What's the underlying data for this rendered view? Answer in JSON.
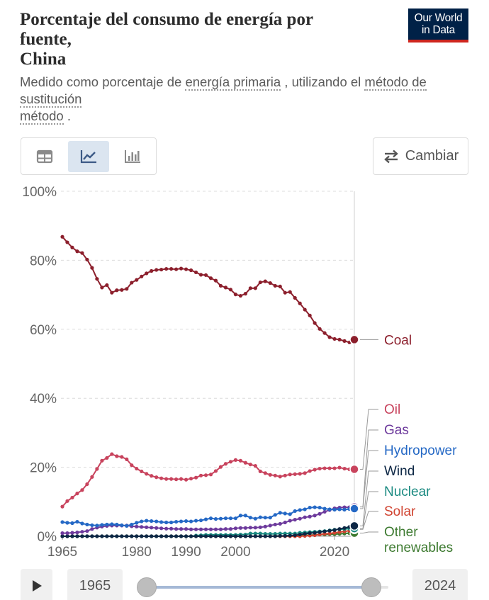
{
  "header": {
    "title_line1": "Porcentaje del consumo de energía por",
    "title_line2": "fuente,",
    "title_line3": "China",
    "logo_line1": "Our World",
    "logo_line2": "in Data",
    "subtitle_part1": "Medido como porcentaje de ",
    "subtitle_link1": "energía primaria",
    "subtitle_part2": " , utilizando el ",
    "subtitle_link2a": "método de sustitución",
    "subtitle_link2b": "método",
    "subtitle_part3": " ."
  },
  "toolbar": {
    "tabs": [
      {
        "name": "table",
        "icon": "table-icon",
        "active": false
      },
      {
        "name": "chart",
        "icon": "line-chart-icon",
        "active": true
      },
      {
        "name": "bar",
        "icon": "bar-chart-icon",
        "active": false
      }
    ],
    "switch_label": "Cambiar"
  },
  "timeline": {
    "start_year": "1965",
    "end_year": "2024"
  },
  "colors": {
    "Coal": "#8c1f2c",
    "Oil": "#c8435d",
    "Gas": "#6d3a9c",
    "Hydropower": "#2468c5",
    "Wind": "#0d2745",
    "Nuclear": "#1b8a81",
    "Solar": "#d0422f",
    "Other renewables": "#3d7a30",
    "grid": "#dcdcdc",
    "axis_text": "#666666"
  },
  "chart_data": {
    "type": "line",
    "x_start": 1965,
    "x_end": 2024,
    "ylim": [
      0,
      100
    ],
    "yticks": [
      "0%",
      "20%",
      "40%",
      "60%",
      "80%",
      "100%"
    ],
    "ytick_values": [
      0,
      20,
      40,
      60,
      80,
      100
    ],
    "xticks": [
      1965,
      1980,
      1990,
      2000,
      2020
    ],
    "grid": true,
    "legend": "right-end-labels",
    "series": [
      {
        "name": "Coal",
        "values": [
          86.8,
          85.2,
          83.7,
          82.6,
          82.1,
          80.2,
          77.8,
          74.6,
          72.1,
          72.8,
          70.6,
          71.3,
          71.4,
          71.7,
          73.5,
          74.3,
          75.3,
          76.2,
          76.9,
          77.2,
          77.3,
          77.5,
          77.5,
          77.4,
          77.6,
          77.4,
          77.1,
          76.5,
          75.8,
          75.7,
          74.8,
          74.1,
          72.6,
          72.1,
          71.5,
          70.1,
          69.7,
          70.3,
          71.9,
          71.9,
          73.6,
          73.9,
          73.4,
          72.6,
          72.4,
          70.6,
          70.8,
          69.1,
          67.5,
          65.7,
          64.0,
          61.8,
          60.1,
          58.9,
          57.7,
          57.2,
          57.0,
          56.6,
          56.2,
          57.0
        ]
      },
      {
        "name": "Oil",
        "values": [
          8.6,
          10.2,
          11.2,
          12.4,
          13.4,
          15.1,
          17.2,
          19.5,
          21.9,
          22.7,
          23.8,
          23.2,
          23.0,
          22.3,
          20.6,
          19.6,
          18.8,
          18.1,
          17.5,
          17.1,
          16.8,
          16.6,
          16.6,
          16.5,
          16.6,
          16.4,
          16.7,
          17.0,
          17.6,
          17.7,
          17.9,
          18.9,
          20.1,
          21.0,
          21.6,
          22.1,
          21.9,
          21.3,
          20.8,
          20.4,
          18.8,
          18.3,
          17.8,
          17.6,
          17.3,
          17.6,
          17.9,
          18.0,
          18.1,
          18.3,
          18.9,
          19.3,
          19.6,
          19.7,
          19.7,
          19.7,
          19.9,
          19.6,
          19.4,
          19.4
        ]
      },
      {
        "name": "Gas",
        "values": [
          0.9,
          0.9,
          1.0,
          1.1,
          1.3,
          1.5,
          2.1,
          2.5,
          2.8,
          3.0,
          3.1,
          3.1,
          3.1,
          3.1,
          2.9,
          2.8,
          2.7,
          2.6,
          2.5,
          2.4,
          2.3,
          2.2,
          2.2,
          2.1,
          2.1,
          2.1,
          2.0,
          2.0,
          2.0,
          2.0,
          2.0,
          2.0,
          2.0,
          2.1,
          2.1,
          2.3,
          2.4,
          2.4,
          2.5,
          2.5,
          2.6,
          2.8,
          3.1,
          3.4,
          3.6,
          4.0,
          4.5,
          4.8,
          5.1,
          5.5,
          5.7,
          6.0,
          6.5,
          7.1,
          7.6,
          8.1,
          8.3,
          8.4,
          8.4,
          8.5
        ]
      },
      {
        "name": "Hydropower",
        "values": [
          4.1,
          3.9,
          3.8,
          4.2,
          3.7,
          3.4,
          3.2,
          3.1,
          3.3,
          3.4,
          3.5,
          3.4,
          3.2,
          3.0,
          3.4,
          3.9,
          4.3,
          4.5,
          4.4,
          4.3,
          4.1,
          4.0,
          4.0,
          4.2,
          4.3,
          4.4,
          4.3,
          4.5,
          4.6,
          4.9,
          5.2,
          5.0,
          5.1,
          5.2,
          5.2,
          5.2,
          6.0,
          6.0,
          5.4,
          5.1,
          5.5,
          5.4,
          5.4,
          6.2,
          6.8,
          6.6,
          6.4,
          7.3,
          7.6,
          7.8,
          8.3,
          8.4,
          8.3,
          8.0,
          7.8,
          7.7,
          7.8,
          7.7,
          7.9,
          8.0
        ]
      },
      {
        "name": "Wind",
        "values": [
          0,
          0,
          0,
          0,
          0,
          0,
          0,
          0,
          0,
          0,
          0,
          0,
          0,
          0,
          0,
          0,
          0,
          0,
          0,
          0,
          0,
          0,
          0,
          0,
          0,
          0,
          0,
          0,
          0,
          0,
          0,
          0,
          0,
          0,
          0,
          0,
          0,
          0,
          0,
          0,
          0,
          0,
          0,
          0,
          0.1,
          0.1,
          0.2,
          0.3,
          0.5,
          0.7,
          0.9,
          1.0,
          1.2,
          1.4,
          1.6,
          1.8,
          2.1,
          2.4,
          2.7,
          3.0
        ]
      },
      {
        "name": "Nuclear",
        "values": [
          0,
          0,
          0,
          0,
          0,
          0,
          0,
          0,
          0,
          0,
          0,
          0,
          0,
          0,
          0,
          0,
          0,
          0,
          0,
          0,
          0,
          0,
          0,
          0,
          0,
          0,
          0,
          0.2,
          0.3,
          0.4,
          0.4,
          0.4,
          0.4,
          0.4,
          0.4,
          0.4,
          0.5,
          0.5,
          0.8,
          0.8,
          0.8,
          0.7,
          0.7,
          0.7,
          0.8,
          0.8,
          0.8,
          0.8,
          1.0,
          1.1,
          1.2,
          1.3,
          1.4,
          1.5,
          1.7,
          1.9,
          2.0,
          2.1,
          2.2,
          2.2
        ]
      },
      {
        "name": "Solar",
        "values": [
          0,
          0,
          0,
          0,
          0,
          0,
          0,
          0,
          0,
          0,
          0,
          0,
          0,
          0,
          0,
          0,
          0,
          0,
          0,
          0,
          0,
          0,
          0,
          0,
          0,
          0,
          0,
          0,
          0,
          0,
          0,
          0,
          0,
          0,
          0,
          0,
          0,
          0,
          0,
          0,
          0,
          0,
          0,
          0,
          0,
          0,
          0,
          0,
          0,
          0.1,
          0.2,
          0.3,
          0.5,
          0.7,
          0.8,
          1.0,
          1.2,
          1.4,
          1.6,
          2.0
        ]
      },
      {
        "name": "Other renewables",
        "values": [
          0,
          0,
          0,
          0,
          0,
          0,
          0,
          0,
          0,
          0,
          0,
          0,
          0,
          0,
          0,
          0,
          0,
          0,
          0,
          0,
          0,
          0,
          0,
          0,
          0,
          0,
          0,
          0,
          0,
          0,
          0,
          0,
          0,
          0,
          0,
          0,
          0,
          0,
          0,
          0,
          0,
          0,
          0,
          0.1,
          0.1,
          0.1,
          0.2,
          0.2,
          0.3,
          0.3,
          0.3,
          0.4,
          0.5,
          0.5,
          0.6,
          0.6,
          0.7,
          0.8,
          0.9,
          0.9
        ]
      }
    ]
  }
}
